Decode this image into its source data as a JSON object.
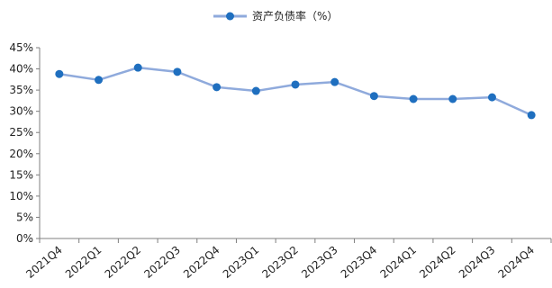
{
  "chart_data": {
    "type": "line",
    "title": "",
    "xlabel": "",
    "ylabel": "",
    "ylim": [
      0,
      45
    ],
    "yticks": [
      "0%",
      "5%",
      "10%",
      "15%",
      "20%",
      "25%",
      "30%",
      "35%",
      "40%",
      "45%"
    ],
    "categories": [
      "2021Q4",
      "2022Q1",
      "2022Q2",
      "2022Q3",
      "2022Q4",
      "2023Q1",
      "2023Q2",
      "2023Q3",
      "2023Q4",
      "2024Q1",
      "2024Q2",
      "2024Q3",
      "2024Q4"
    ],
    "series": [
      {
        "name": "资产负债率（%）",
        "values": [
          38.8,
          37.4,
          40.3,
          39.3,
          35.7,
          34.8,
          36.3,
          36.9,
          33.6,
          32.9,
          32.9,
          33.3,
          29.1
        ]
      }
    ],
    "grid": false,
    "legend": "top-center",
    "colors": {
      "line": "#8faadc",
      "marker": "#1f6fbf",
      "axis": "#7f7f7f"
    }
  }
}
